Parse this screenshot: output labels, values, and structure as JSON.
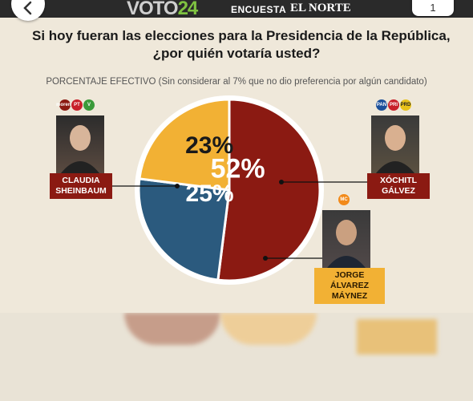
{
  "header": {
    "back_icon": "chevron-left-icon",
    "logo_word": "VOTO",
    "logo_number": "24",
    "encuesta": "ENCUESTA",
    "newspaper": "EL NORTE",
    "page_number": "1"
  },
  "question_line1": "Si hoy fueran las elecciones para la Presidencia de la República,",
  "question_line2": "¿por quién votaría usted?",
  "subtitle": "PORCENTAJE EFECTIVO (Sin considerar al 7% que no dio preferencia por algún candidato)",
  "candidates": [
    {
      "name_line1": "CLAUDIA",
      "name_line2": "SHEINBAUM",
      "parties": [
        "morena",
        "PT",
        "V"
      ]
    },
    {
      "name_line1": "XÓCHITL",
      "name_line2": "GÁLVEZ",
      "parties": [
        "PAN",
        "PRI",
        "PRD"
      ]
    },
    {
      "name_line1": "JORGE ÁLVAREZ",
      "name_line2": "MÁYNEZ",
      "parties": [
        "MC"
      ]
    }
  ],
  "chart_data": {
    "type": "pie",
    "title": "Si hoy fueran las elecciones para la Presidencia de la República, ¿por quién votaría usted?",
    "subtitle": "PORCENTAJE EFECTIVO (Sin considerar al 7% que no dio preferencia por algún candidato)",
    "slices": [
      {
        "label": "CLAUDIA SHEINBAUM",
        "value": 52,
        "display": "52%",
        "color": "#8b1a12"
      },
      {
        "label": "XÓCHITL GÁLVEZ",
        "value": 25,
        "display": "25%",
        "color": "#2b5a7e"
      },
      {
        "label": "JORGE ÁLVAREZ MÁYNEZ",
        "value": 23,
        "display": "23%",
        "color": "#f2b134"
      }
    ],
    "start": "12 o'clock, clockwise"
  },
  "colors": {
    "background": "#efe8da",
    "morena": "#8b1a12",
    "pan": "#2b5a7e",
    "mc": "#f2b134"
  }
}
